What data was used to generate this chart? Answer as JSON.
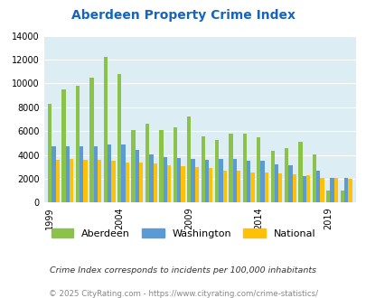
{
  "title": "Aberdeen Property Crime Index",
  "years": [
    1999,
    2000,
    2001,
    2002,
    2003,
    2004,
    2005,
    2006,
    2007,
    2008,
    2009,
    2010,
    2011,
    2012,
    2013,
    2014,
    2015,
    2016,
    2017,
    2018,
    2019,
    2020
  ],
  "aberdeen": [
    8300,
    9500,
    9800,
    10500,
    12200,
    10800,
    6100,
    6650,
    6100,
    6350,
    7200,
    5550,
    5250,
    5800,
    5800,
    5450,
    4350,
    4600,
    5100,
    4050,
    1050,
    1050
  ],
  "washington": [
    4750,
    4750,
    4750,
    4750,
    4850,
    4850,
    4450,
    4050,
    3850,
    3750,
    3700,
    3600,
    3700,
    3700,
    3500,
    3500,
    3200,
    3100,
    2200,
    2700,
    2100,
    2100
  ],
  "national": [
    3600,
    3700,
    3600,
    3600,
    3500,
    3400,
    3350,
    3300,
    3100,
    3050,
    3000,
    2900,
    2700,
    2650,
    2550,
    2550,
    2450,
    2350,
    2300,
    2100,
    2050,
    2000
  ],
  "aberdeen_color": "#8bc34a",
  "washington_color": "#5b9bd5",
  "national_color": "#ffc107",
  "bg_color": "#dceef3",
  "yticks": [
    0,
    2000,
    4000,
    6000,
    8000,
    10000,
    12000,
    14000
  ],
  "xtick_positions": [
    1999,
    2004,
    2009,
    2014,
    2019
  ],
  "ylabel_note": "Crime Index corresponds to incidents per 100,000 inhabitants",
  "footer": "© 2025 CityRating.com - https://www.cityrating.com/crime-statistics/",
  "title_color": "#1565c0",
  "footer_color": "#888888",
  "note_color": "#333333"
}
